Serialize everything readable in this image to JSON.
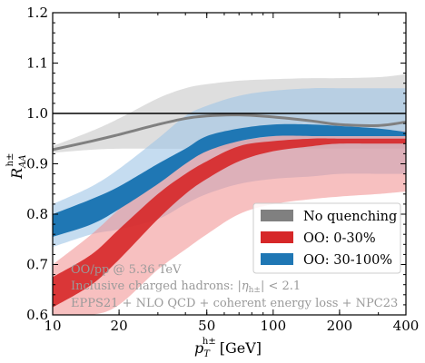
{
  "chart_data": {
    "type": "line",
    "xlabel": "p",
    "xlabel_sub": "T",
    "xlabel_sup": "h±",
    "xlabel_unit": "[GeV]",
    "ylabel": "R",
    "ylabel_sub": "AA",
    "ylabel_sup": "h±",
    "xscale": "log",
    "xlim": [
      10,
      400
    ],
    "ylim": [
      0.6,
      1.2
    ],
    "x_ticks": [
      10,
      20,
      50,
      100,
      200,
      400
    ],
    "x_tick_labels": [
      "10",
      "20",
      "50",
      "100",
      "200",
      "400"
    ],
    "y_ticks": [
      0.6,
      0.7,
      0.8,
      0.9,
      1.0,
      1.1,
      1.2
    ],
    "y_tick_labels": [
      "0.6",
      "0.7",
      "0.8",
      "0.9",
      "1.0",
      "1.1",
      "1.2"
    ],
    "reference_line": 1.0,
    "legend_position": "lower-right",
    "series": [
      {
        "name": "No quenching",
        "color": "#808080",
        "x": [
          10,
          15,
          20,
          30,
          40,
          50,
          70,
          100,
          150,
          200,
          300,
          400
        ],
        "central": [
          0.928,
          0.945,
          0.958,
          0.978,
          0.99,
          0.995,
          0.997,
          0.993,
          0.985,
          0.978,
          0.976,
          0.983
        ],
        "outer_lower": [
          0.922,
          0.928,
          0.93,
          0.93,
          0.93,
          0.93,
          0.93,
          0.93,
          0.93,
          0.93,
          0.93,
          0.93
        ],
        "outer_upper": [
          0.935,
          0.965,
          0.99,
          1.03,
          1.05,
          1.058,
          1.065,
          1.068,
          1.07,
          1.07,
          1.072,
          1.078
        ]
      },
      {
        "name": "OO: 0-30%",
        "color": "#d62728",
        "x": [
          10,
          15,
          20,
          30,
          40,
          50,
          70,
          100,
          150,
          200,
          300,
          400
        ],
        "band_lower": [
          0.615,
          0.66,
          0.71,
          0.79,
          0.84,
          0.87,
          0.905,
          0.925,
          0.935,
          0.94,
          0.94,
          0.94
        ],
        "band_upper": [
          0.675,
          0.72,
          0.77,
          0.84,
          0.88,
          0.905,
          0.935,
          0.945,
          0.95,
          0.95,
          0.95,
          0.95
        ],
        "outer_lower": [
          0.6,
          0.6,
          0.62,
          0.69,
          0.73,
          0.76,
          0.8,
          0.82,
          0.83,
          0.835,
          0.84,
          0.845
        ],
        "outer_upper": [
          0.7,
          0.76,
          0.81,
          0.88,
          0.915,
          0.93,
          0.945,
          0.955,
          0.96,
          0.965,
          0.965,
          0.965
        ]
      },
      {
        "name": "OO: 30-100%",
        "color": "#1f77b4",
        "x": [
          10,
          15,
          20,
          30,
          40,
          50,
          70,
          100,
          150,
          200,
          300,
          400
        ],
        "band_lower": [
          0.755,
          0.78,
          0.81,
          0.86,
          0.9,
          0.925,
          0.945,
          0.955,
          0.955,
          0.955,
          0.955,
          0.955
        ],
        "band_upper": [
          0.8,
          0.83,
          0.855,
          0.9,
          0.93,
          0.955,
          0.97,
          0.978,
          0.978,
          0.975,
          0.97,
          0.963
        ],
        "outer_lower": [
          0.735,
          0.76,
          0.77,
          0.79,
          0.82,
          0.84,
          0.86,
          0.87,
          0.875,
          0.88,
          0.88,
          0.88
        ],
        "outer_upper": [
          0.82,
          0.855,
          0.89,
          0.95,
          0.995,
          1.015,
          1.035,
          1.045,
          1.05,
          1.05,
          1.05,
          1.05
        ]
      }
    ],
    "annotations": [
      "OO/pp @ 5.36 TeV",
      "Inclusive charged hadrons: |η_h±| < 2.1",
      "EPPS21 + NLO QCD + coherent energy loss + NPC23"
    ],
    "annotation_eta": "η",
    "annotation_eta_sub": "h±",
    "annotation_prefix": "Inclusive charged hadrons: |",
    "annotation_suffix": "| < 2.1"
  }
}
